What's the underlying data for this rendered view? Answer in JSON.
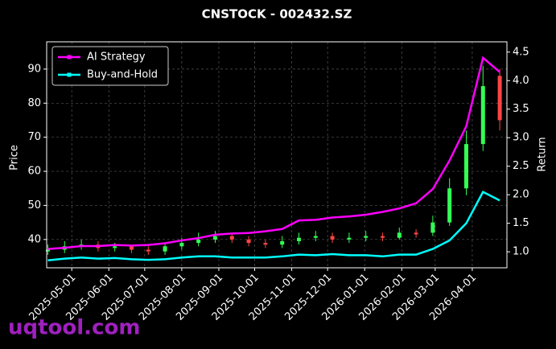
{
  "chart_data": {
    "type": "candlestick",
    "title": "CNSTOCK - 002432.SZ",
    "ylabel": "Price",
    "y2label": "Return",
    "watermark": "uqtool.com",
    "x": [
      "2025-04-11",
      "2025-04-25",
      "2025-05-09",
      "2025-05-23",
      "2025-06-06",
      "2025-06-20",
      "2025-07-04",
      "2025-07-18",
      "2025-08-01",
      "2025-08-15",
      "2025-08-29",
      "2025-09-12",
      "2025-09-26",
      "2025-10-10",
      "2025-10-24",
      "2025-11-07",
      "2025-11-21",
      "2025-12-05",
      "2025-12-19",
      "2026-01-02",
      "2026-01-16",
      "2026-01-30",
      "2026-02-13",
      "2026-02-27",
      "2026-03-13",
      "2026-03-27",
      "2026-04-10",
      "2026-04-24"
    ],
    "open": [
      36.5,
      37,
      38,
      38.5,
      37.5,
      38,
      37,
      36.5,
      38,
      39,
      40,
      41,
      40,
      39,
      38.5,
      39.5,
      40.5,
      41,
      40,
      40.5,
      41,
      40.5,
      42,
      42,
      45,
      55,
      68,
      88
    ],
    "high": [
      38.5,
      39.5,
      40,
      39.5,
      39,
      38.5,
      38,
      39,
      40.5,
      42,
      42.5,
      42,
      41,
      40,
      41,
      42,
      42.5,
      42,
      42,
      42.5,
      42,
      43.5,
      43,
      47,
      58,
      72,
      91,
      90
    ],
    "low": [
      35.5,
      36,
      37,
      36.5,
      36.5,
      36,
      35.5,
      35.5,
      37,
      38,
      39,
      39,
      38,
      37.5,
      37.5,
      38.5,
      39.5,
      39,
      39,
      39.5,
      39.5,
      40,
      40.5,
      41,
      44,
      53,
      66,
      72
    ],
    "close": [
      37,
      38,
      38.5,
      37.5,
      38,
      37,
      36.5,
      38,
      39,
      40,
      41,
      40,
      39,
      38.5,
      39.5,
      40.5,
      41,
      40,
      40.5,
      41,
      40.5,
      42,
      41.5,
      45,
      55,
      68,
      85,
      75
    ],
    "up_color": "#33ff55",
    "down_color": "#ff4444",
    "series": [
      {
        "name": "AI Strategy",
        "color": "#ff00ff",
        "axis": "y2",
        "values": [
          1.05,
          1.07,
          1.1,
          1.1,
          1.12,
          1.11,
          1.12,
          1.15,
          1.2,
          1.24,
          1.3,
          1.32,
          1.33,
          1.36,
          1.4,
          1.55,
          1.56,
          1.6,
          1.62,
          1.65,
          1.7,
          1.76,
          1.85,
          2.1,
          2.6,
          3.2,
          4.4,
          4.15
        ]
      },
      {
        "name": "Buy-and-Hold",
        "color": "#00ffff",
        "axis": "y2",
        "values": [
          0.85,
          0.88,
          0.9,
          0.88,
          0.89,
          0.87,
          0.86,
          0.87,
          0.9,
          0.92,
          0.92,
          0.9,
          0.9,
          0.9,
          0.92,
          0.95,
          0.94,
          0.96,
          0.94,
          0.94,
          0.92,
          0.95,
          0.95,
          1.05,
          1.2,
          1.5,
          2.05,
          1.9
        ]
      }
    ],
    "xlim": [
      "2025-04-10",
      "2026-04-30"
    ],
    "xticks": [
      "2025-05-01",
      "2025-06-01",
      "2025-07-01",
      "2025-08-01",
      "2025-09-01",
      "2025-10-01",
      "2025-11-01",
      "2025-12-01",
      "2026-01-01",
      "2026-02-01",
      "2026-03-01",
      "2026-04-01"
    ],
    "ylim": [
      31.7,
      98.0
    ],
    "yticks": [
      40,
      50,
      60,
      70,
      80,
      90
    ],
    "y2lim": [
      0.72,
      4.68
    ],
    "y2ticks": [
      1.0,
      1.5,
      2.0,
      2.5,
      3.0,
      3.5,
      4.0,
      4.5
    ],
    "grid": true,
    "legend": "upper left"
  }
}
